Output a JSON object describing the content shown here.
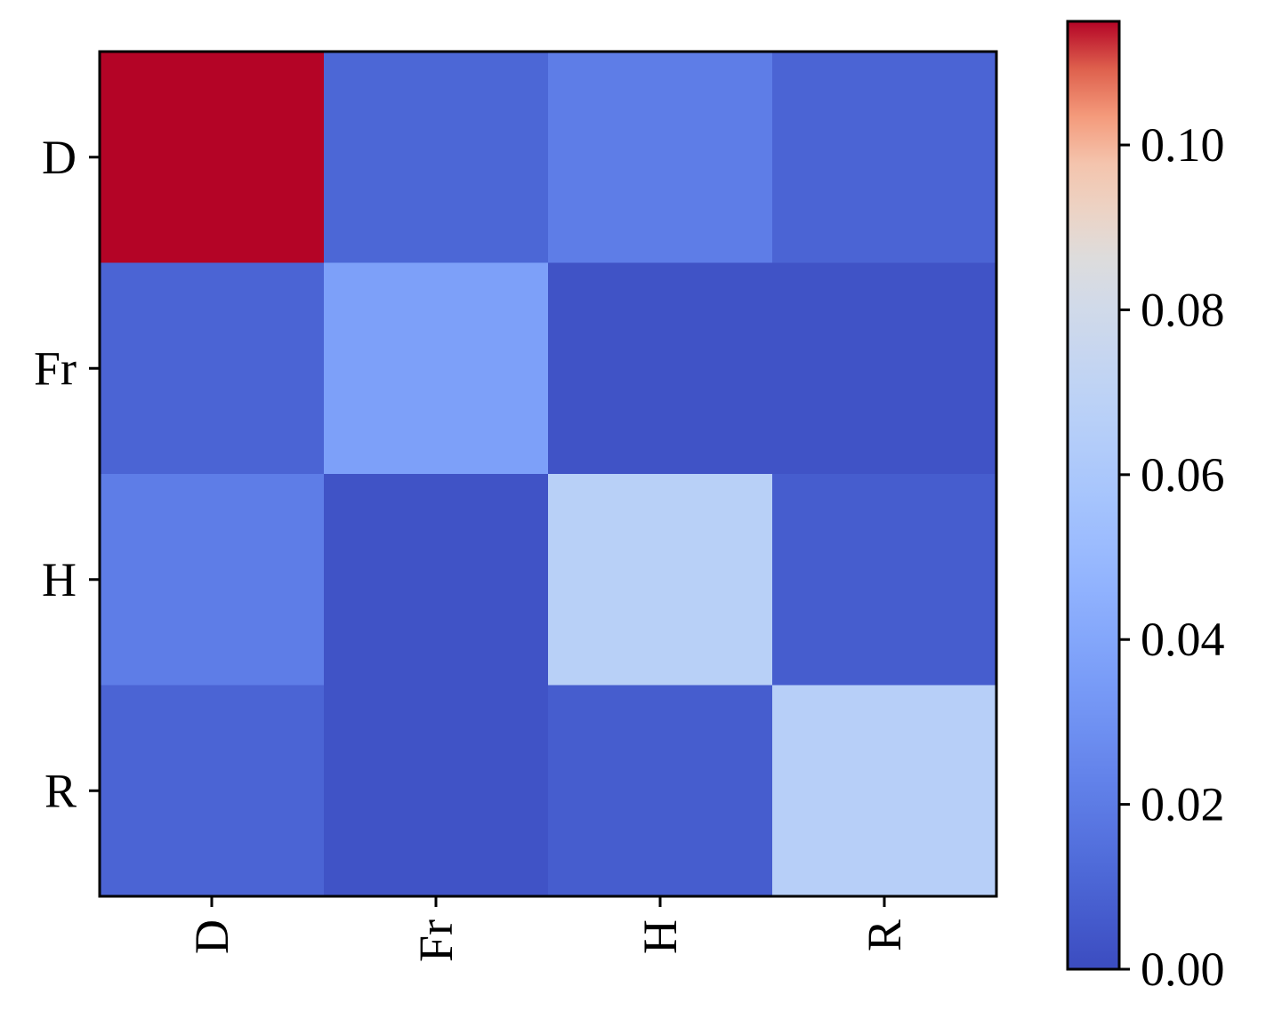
{
  "chart_data": {
    "type": "heatmap",
    "title": "",
    "xlabel": "",
    "ylabel": "",
    "x_categories": [
      "D",
      "Fr",
      "H",
      "R"
    ],
    "y_categories": [
      "D",
      "Fr",
      "H",
      "R"
    ],
    "values": [
      [
        0.115,
        0.011,
        0.021,
        0.01
      ],
      [
        0.01,
        0.037,
        0.003,
        0.003
      ],
      [
        0.021,
        0.003,
        0.067,
        0.007
      ],
      [
        0.01,
        0.003,
        0.007,
        0.066
      ]
    ],
    "colormap": "coolwarm",
    "vmin": 0.0,
    "vmax": 0.115,
    "colorbar": {
      "ticks": [
        0.0,
        0.02,
        0.04,
        0.06,
        0.08,
        0.1
      ],
      "tick_labels": [
        "0.00",
        "0.02",
        "0.04",
        "0.06",
        "0.08",
        "0.10"
      ]
    },
    "x_tick_rotation": "vertical",
    "grid": false
  }
}
